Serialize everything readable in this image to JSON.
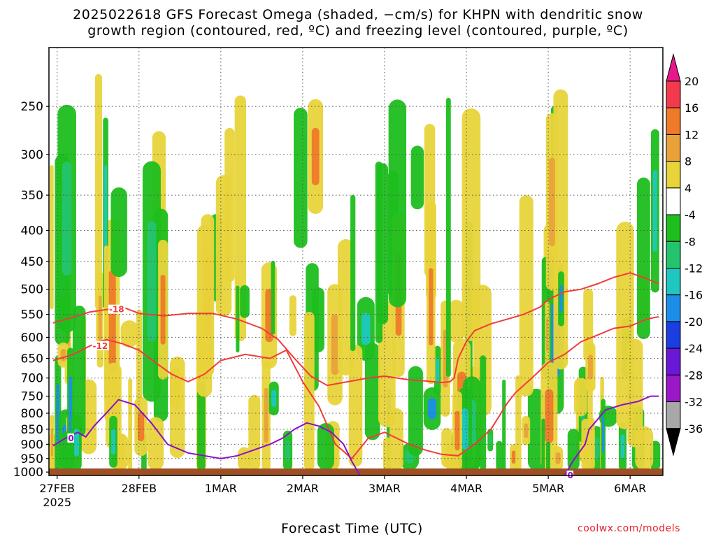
{
  "title_line1": "2025022618 GFS Forecast Omega (shaded, −cm/s) for KHPN with dendritic snow",
  "title_line2": "growth region (contoured, red, ºC) and freezing level (contoured, purple, ºC)",
  "credit": "coolwx.com/models",
  "chart_data": {
    "type": "heatmap",
    "title": "2025022618 GFS Forecast Omega (shaded, −cm/s) for KHPN with dendritic snow growth region (contoured, red, ºC) and freezing level (contoured, purple, ºC)",
    "xlabel": "Forecast Time (UTC)",
    "ylabel": "",
    "x_ticks": [
      "27FEB",
      "28FEB",
      "1MAR",
      "2MAR",
      "3MAR",
      "4MAR",
      "5MAR",
      "6MAR"
    ],
    "x_tick_sub": "2025",
    "x_range_days": [
      26.9,
      34.4
    ],
    "y_ticks": [
      250,
      300,
      350,
      400,
      450,
      500,
      550,
      600,
      650,
      700,
      750,
      800,
      850,
      900,
      950,
      1000
    ],
    "y_range_hpa": [
      200,
      1013
    ],
    "y_scale": "log-pressure",
    "grid": true,
    "colorbar_labels": [
      20,
      16,
      12,
      8,
      4,
      -4,
      -8,
      -12,
      -16,
      -20,
      -24,
      -28,
      -32,
      -36
    ],
    "colorbar_colors": [
      "#f23a4c",
      "#ef7a2a",
      "#e9a23a",
      "#e8d43a",
      "#ffffff",
      "#1ebe1e",
      "#24c46e",
      "#1ec8c0",
      "#1c8ee8",
      "#1a3ee0",
      "#6a18d8",
      "#9a18c8",
      "#a8a8a8",
      "#000000"
    ],
    "colorbar_top_color": "#e8188a",
    "ground_color": "#9e5024",
    "series": [
      {
        "name": "-18",
        "color": "#f03c3c",
        "points": [
          [
            26.95,
            568
          ],
          [
            27.2,
            556
          ],
          [
            27.4,
            545
          ],
          [
            27.6,
            540
          ],
          [
            27.8,
            535
          ],
          [
            28.0,
            548
          ],
          [
            28.3,
            553
          ],
          [
            28.6,
            548
          ],
          [
            28.9,
            548
          ],
          [
            29.2,
            560
          ],
          [
            29.5,
            580
          ],
          [
            29.7,
            605
          ],
          [
            29.9,
            650
          ],
          [
            30.1,
            695
          ],
          [
            30.3,
            720
          ],
          [
            30.5,
            712
          ],
          [
            30.8,
            700
          ],
          [
            31.0,
            695
          ],
          [
            31.3,
            705
          ],
          [
            31.5,
            708
          ],
          [
            31.7,
            712
          ],
          [
            31.8,
            710
          ],
          [
            31.85,
            700
          ],
          [
            31.9,
            650
          ],
          [
            32.0,
            610
          ],
          [
            32.1,
            585
          ],
          [
            32.3,
            570
          ],
          [
            32.5,
            560
          ],
          [
            32.7,
            550
          ],
          [
            32.9,
            535
          ],
          [
            33.0,
            520
          ],
          [
            33.2,
            505
          ],
          [
            33.4,
            500
          ],
          [
            33.6,
            490
          ],
          [
            33.8,
            478
          ],
          [
            34.0,
            470
          ],
          [
            34.2,
            480
          ],
          [
            34.35,
            490
          ]
        ]
      },
      {
        "name": "-12",
        "color": "#f03c3c",
        "points": [
          [
            26.95,
            655
          ],
          [
            27.2,
            640
          ],
          [
            27.4,
            620
          ],
          [
            27.6,
            605
          ],
          [
            27.8,
            615
          ],
          [
            28.0,
            630
          ],
          [
            28.2,
            660
          ],
          [
            28.4,
            690
          ],
          [
            28.6,
            710
          ],
          [
            28.8,
            690
          ],
          [
            29.0,
            655
          ],
          [
            29.3,
            640
          ],
          [
            29.6,
            650
          ],
          [
            29.8,
            630
          ],
          [
            30.0,
            710
          ],
          [
            30.2,
            780
          ],
          [
            30.4,
            900
          ],
          [
            30.6,
            950
          ],
          [
            30.8,
            880
          ],
          [
            31.0,
            860
          ],
          [
            31.3,
            900
          ],
          [
            31.5,
            920
          ],
          [
            31.7,
            935
          ],
          [
            31.9,
            940
          ],
          [
            32.1,
            900
          ],
          [
            32.3,
            850
          ],
          [
            32.5,
            770
          ],
          [
            32.6,
            740
          ],
          [
            32.8,
            700
          ],
          [
            33.0,
            660
          ],
          [
            33.2,
            640
          ],
          [
            33.4,
            610
          ],
          [
            33.6,
            595
          ],
          [
            33.8,
            580
          ],
          [
            34.0,
            575
          ],
          [
            34.2,
            560
          ],
          [
            34.35,
            555
          ]
        ]
      },
      {
        "name": "0",
        "color": "#8a10c8",
        "points": [
          [
            26.95,
            905
          ],
          [
            27.1,
            880
          ],
          [
            27.25,
            860
          ],
          [
            27.35,
            875
          ],
          [
            27.45,
            840
          ],
          [
            27.6,
            800
          ],
          [
            27.75,
            760
          ],
          [
            27.95,
            775
          ],
          [
            28.15,
            830
          ],
          [
            28.35,
            900
          ],
          [
            28.6,
            930
          ],
          [
            28.8,
            940
          ],
          [
            29.0,
            950
          ],
          [
            29.2,
            940
          ],
          [
            29.4,
            920
          ],
          [
            29.6,
            900
          ],
          [
            29.75,
            880
          ],
          [
            29.9,
            850
          ],
          [
            30.05,
            830
          ],
          [
            30.2,
            840
          ],
          [
            30.35,
            860
          ],
          [
            30.5,
            900
          ],
          [
            30.6,
            960
          ],
          [
            30.7,
            1013
          ]
        ]
      },
      {
        "name": "0",
        "color": "#8a10c8",
        "points": [
          [
            33.2,
            1013
          ],
          [
            33.3,
            960
          ],
          [
            33.45,
            900
          ],
          [
            33.5,
            850
          ],
          [
            33.6,
            820
          ],
          [
            33.7,
            790
          ],
          [
            33.9,
            775
          ],
          [
            34.1,
            765
          ],
          [
            34.25,
            750
          ],
          [
            34.35,
            750
          ]
        ]
      }
    ],
    "contour_labels": [
      "-18",
      "-12",
      "0"
    ]
  }
}
